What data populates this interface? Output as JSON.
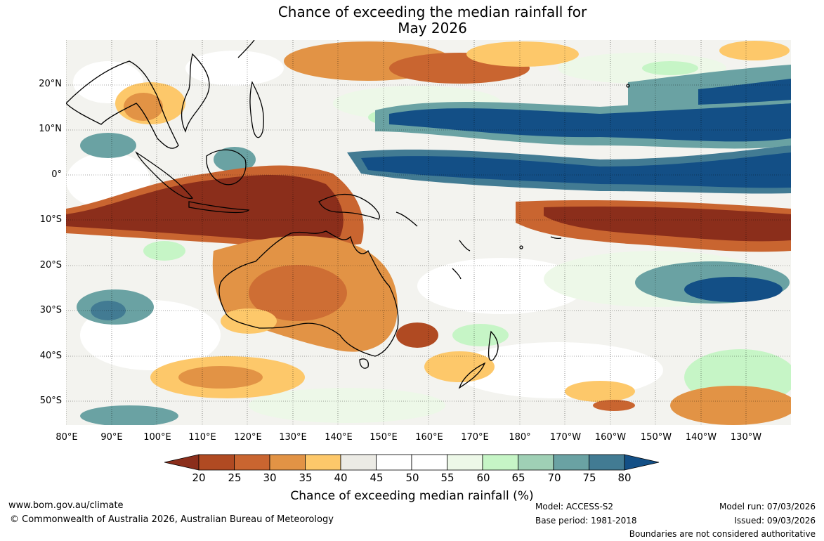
{
  "title": {
    "line1": "Chance of exceeding the median rainfall for",
    "line2": "May 2026"
  },
  "axes": {
    "lat_labels": [
      "20°N",
      "10°N",
      "0°",
      "10°S",
      "20°S",
      "30°S",
      "40°S",
      "50°S"
    ],
    "lon_labels": [
      "80°E",
      "90°E",
      "100°E",
      "110°E",
      "120°E",
      "130°E",
      "140°E",
      "150°E",
      "160°E",
      "170°E",
      "180°",
      "170°W",
      "160°W",
      "150°W",
      "140°W",
      "130°W"
    ]
  },
  "colorbar": {
    "ticks": [
      "20",
      "25",
      "30",
      "35",
      "40",
      "45",
      "50",
      "55",
      "60",
      "65",
      "70",
      "75",
      "80"
    ],
    "colors": [
      "#8b2e1b",
      "#b04a22",
      "#c96530",
      "#e29345",
      "#fdc86a",
      "#ecebe5",
      "#ffffff",
      "#ffffff",
      "#edf8e8",
      "#c6f5c6",
      "#9fd0b5",
      "#6aa2a3",
      "#427b93",
      "#134f86"
    ],
    "label": "Chance of exceeding median rainfall (%)"
  },
  "footer": {
    "website": "www.bom.gov.au/climate",
    "copyright": "© Commonwealth of Australia 2026, Australian Bureau of Meteorology",
    "model": "Model: ACCESS-S2",
    "base_period": "Base period: 1981-2018",
    "model_run": "Model run: 07/03/2026",
    "issued": "Issued: 09/03/2026",
    "disclaimer": "Boundaries are not considered authoritative"
  }
}
